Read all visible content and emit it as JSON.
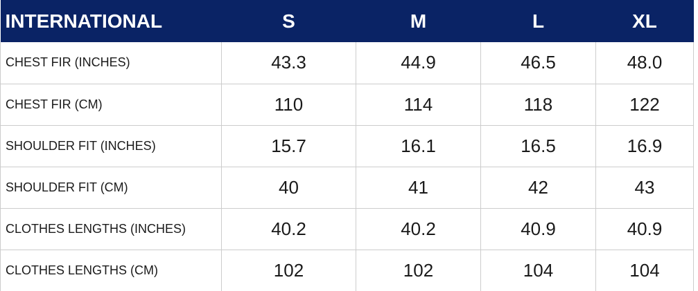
{
  "chart_data": {
    "type": "table",
    "columns": [
      "INTERNATIONAL",
      "S",
      "M",
      "L",
      "XL"
    ],
    "rows": [
      {
        "label": "CHEST FIR (INCHES)",
        "values": [
          "43.3",
          "44.9",
          "46.5",
          "48.0"
        ]
      },
      {
        "label": "CHEST FIR (CM)",
        "values": [
          "110",
          "114",
          "118",
          "122"
        ]
      },
      {
        "label": "SHOULDER FIT (INCHES)",
        "values": [
          "15.7",
          "16.1",
          "16.5",
          "16.9"
        ]
      },
      {
        "label": "SHOULDER FIT (CM)",
        "values": [
          "40",
          "41",
          "42",
          "43"
        ]
      },
      {
        "label": "CLOTHES LENGTHS (INCHES)",
        "values": [
          "40.2",
          "40.2",
          "40.9",
          "40.9"
        ]
      },
      {
        "label": "CLOTHES LENGTHS (CM)",
        "values": [
          "102",
          "102",
          "104",
          "104"
        ]
      }
    ],
    "layout": {
      "legend": "none",
      "grid": "on",
      "header_style": "dark-navy band, white bold text",
      "first_column_role": "measurement label",
      "value_columns_role": "size values"
    }
  },
  "colors": {
    "header_bg": "#0a2365",
    "header_text": "#ffffff",
    "grid_line": "#cccccc",
    "body_text": "#1a1a1a",
    "background": "#ffffff"
  }
}
